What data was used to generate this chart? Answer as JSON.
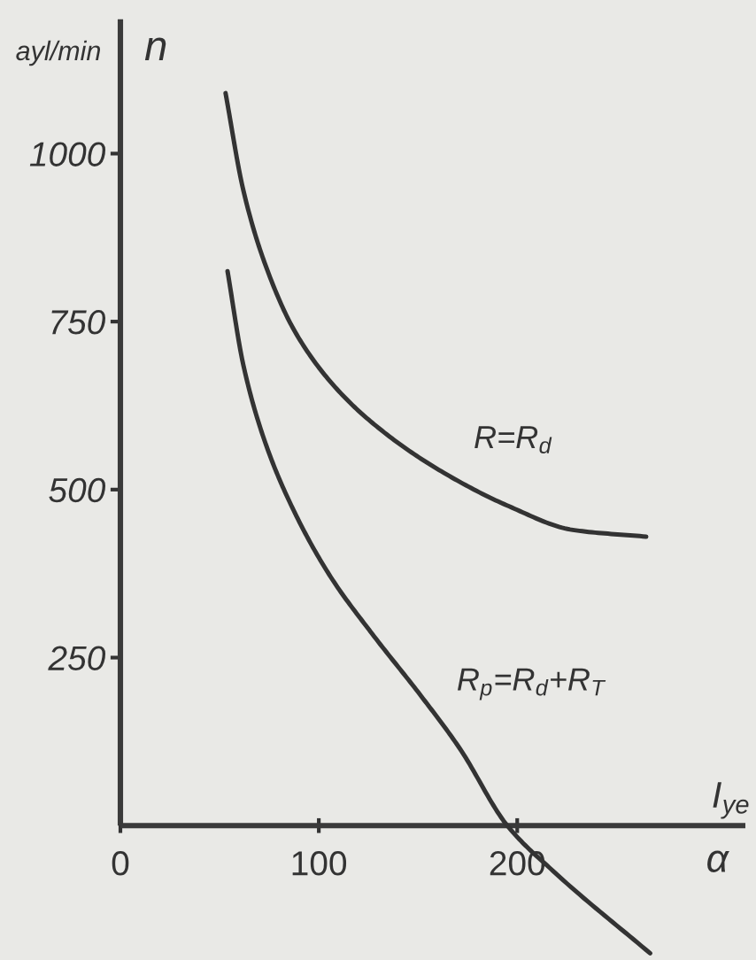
{
  "chart_data": {
    "type": "line",
    "ylabel": "n",
    "xlabel": "α",
    "annotations": [
      "ayl/min",
      "I$_{ye}$"
    ],
    "xlim": [
      0,
      315
    ],
    "ylim": [
      -200,
      1200
    ],
    "xticks": [
      0,
      100,
      200
    ],
    "yticks": [
      250,
      500,
      750,
      1000
    ],
    "marker": "none",
    "line_style": "solid",
    "series": [
      {
        "name": "R=R$_{d}$",
        "color": "#333333",
        "x": [
          53,
          62,
          73,
          88,
          109,
          133,
          163,
          196,
          228,
          265
        ],
        "values": [
          1090,
          945,
          835,
          735,
          650,
          585,
          525,
          475,
          440,
          430
        ]
      },
      {
        "name": "R$_{p}$=R$_{d}$+R$_{T}$",
        "color": "#333333",
        "x": [
          54,
          62,
          73,
          88,
          106,
          127,
          151,
          171,
          195,
          219,
          267
        ],
        "values": [
          825,
          685,
          570,
          465,
          370,
          285,
          195,
          115,
          0,
          -70,
          -190
        ]
      }
    ]
  }
}
